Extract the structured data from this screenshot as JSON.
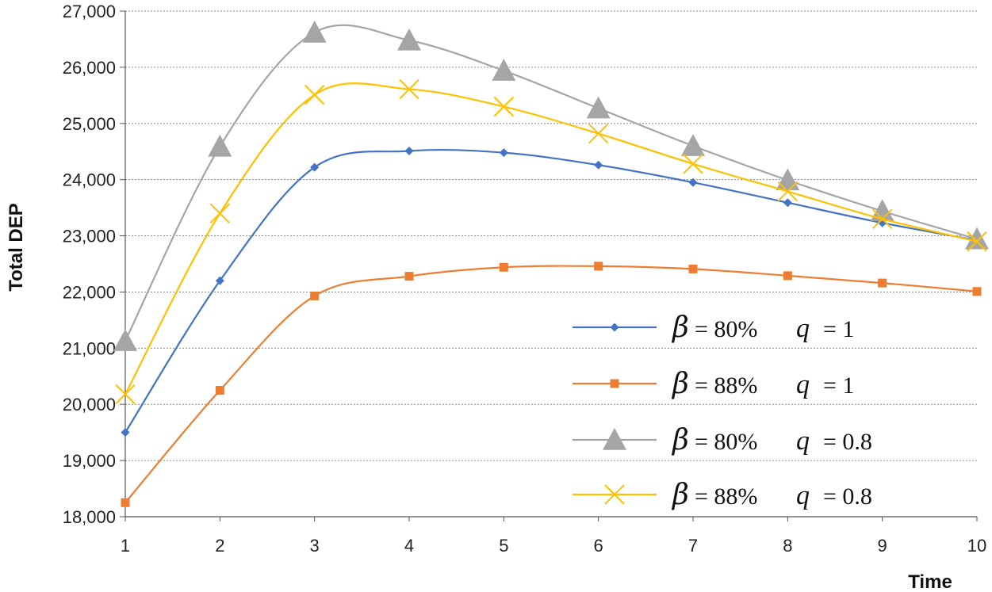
{
  "chart_data": {
    "type": "line",
    "title": "",
    "xlabel": "Time",
    "ylabel": "Total DEP",
    "x": [
      1,
      2,
      3,
      4,
      5,
      6,
      7,
      8,
      9,
      10
    ],
    "ylim": [
      18000,
      27000
    ],
    "yticks": [
      18000,
      19000,
      20000,
      21000,
      22000,
      23000,
      24000,
      25000,
      26000,
      27000
    ],
    "ytick_labels": [
      "18,000",
      "19,000",
      "20,000",
      "21,000",
      "22,000",
      "23,000",
      "24,000",
      "25,000",
      "26,000",
      "27,000"
    ],
    "xtick_labels": [
      "1",
      "2",
      "3",
      "4",
      "5",
      "6",
      "7",
      "8",
      "9",
      "10"
    ],
    "grid": "horizontal-dotted",
    "legend_position": "bottom-right",
    "series": [
      {
        "name": "β = 80%   q = 1",
        "beta": "β",
        "beta_value": "= 80%",
        "q": "q",
        "q_value": "= 1",
        "color": "#4472c4",
        "marker": "diamond",
        "values": [
          19500,
          22200,
          24220,
          24510,
          24480,
          24260,
          23950,
          23590,
          23230,
          22920
        ]
      },
      {
        "name": "β = 88%   q = 1",
        "beta": "β",
        "beta_value": "= 88%",
        "q": "q",
        "q_value": "= 1",
        "color": "#ed7d31",
        "marker": "square",
        "values": [
          18250,
          20250,
          21930,
          22280,
          22440,
          22460,
          22410,
          22290,
          22160,
          22010
        ]
      },
      {
        "name": "β = 80%   q = 0.8",
        "beta": "β",
        "beta_value": "= 80%",
        "q": "q",
        "q_value": "= 0.8",
        "color": "#a5a5a5",
        "marker": "triangle",
        "values": [
          21130,
          24590,
          26620,
          26480,
          25940,
          25270,
          24600,
          23990,
          23440,
          22940
        ]
      },
      {
        "name": "β = 88%   q = 0.8",
        "beta": "β",
        "beta_value": "= 88%",
        "q": "q",
        "q_value": "= 0.8",
        "color": "#ffc000",
        "marker": "x",
        "values": [
          20180,
          23400,
          25510,
          25610,
          25300,
          24820,
          24280,
          23790,
          23300,
          22900
        ]
      }
    ]
  }
}
